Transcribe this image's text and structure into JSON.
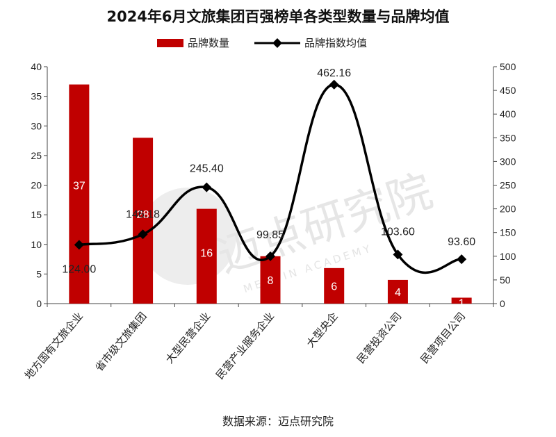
{
  "chart_data": {
    "type": "bar",
    "title": "2024年6月文旅集团百强榜单各类型数量与品牌均值",
    "categories": [
      "地方国有文旅企业",
      "省市级文旅集团",
      "大型民营企业",
      "民营产业服务企业",
      "大型央企",
      "民营投资公司",
      "民营项目公司"
    ],
    "series": [
      {
        "name": "品牌数量",
        "type": "bar",
        "axis": "left",
        "color": "#c00000",
        "values": [
          37,
          28,
          16,
          8,
          6,
          4,
          1
        ],
        "labels": [
          "37",
          "28",
          "16",
          "8",
          "6",
          "4",
          "1"
        ]
      },
      {
        "name": "品牌指数均值",
        "type": "line",
        "axis": "right",
        "color": "#000000",
        "values": [
          124.0,
          146.18,
          245.4,
          99.85,
          462.16,
          103.6,
          93.6
        ],
        "labels": [
          "124.00",
          "146.18",
          "245.40",
          "99.85",
          "462.16",
          "103.60",
          "93.60"
        ]
      }
    ],
    "y_left": {
      "range": [
        0,
        40
      ],
      "ticks": [
        "0",
        "5",
        "10",
        "15",
        "20",
        "25",
        "30",
        "35",
        "40"
      ]
    },
    "y_right": {
      "range": [
        0,
        500
      ],
      "ticks": [
        "0",
        "50",
        "100",
        "150",
        "200",
        "250",
        "300",
        "350",
        "400",
        "450",
        "500"
      ]
    },
    "grid": false,
    "legend_position": "top-center"
  },
  "source": "数据来源：迈点研究院",
  "watermark": {
    "text": "迈点研究院",
    "sub": "MEADIN ACADEMY"
  }
}
